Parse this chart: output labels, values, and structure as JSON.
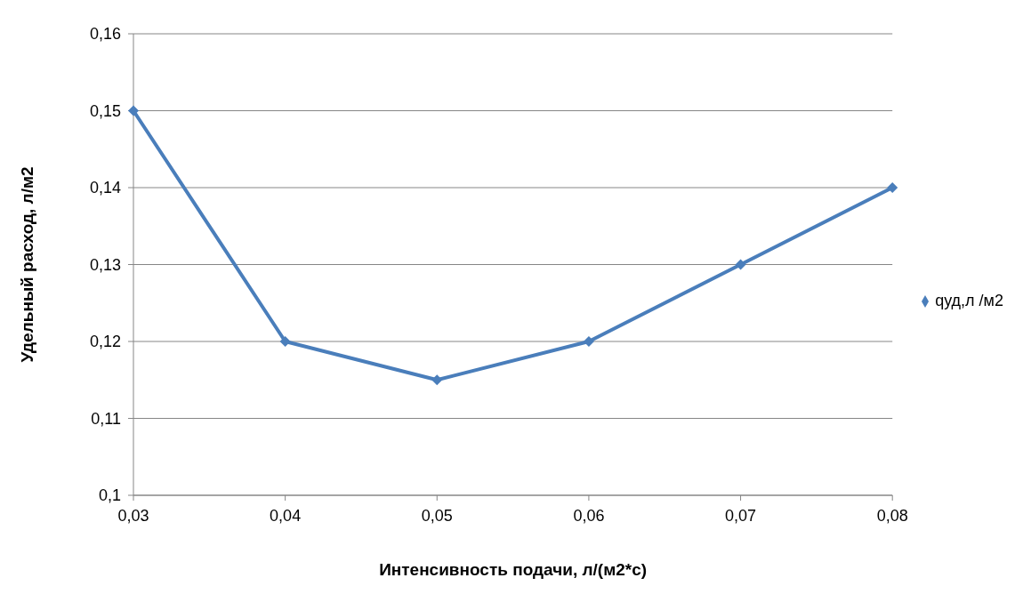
{
  "chart_data": {
    "type": "line",
    "xlabel": "Интенсивность подачи, л/(м2*с)",
    "ylabel": "Удельный расход, л/м2",
    "categories": [
      "0,03",
      "0,04",
      "0,05",
      "0,06",
      "0,07",
      "0,08"
    ],
    "series": [
      {
        "name": "qуд,л /м2",
        "color": "#4a7ebb",
        "values": [
          0.15,
          0.12,
          0.115,
          0.12,
          0.13,
          0.14
        ]
      }
    ],
    "ylim": [
      0.1,
      0.16
    ],
    "yticks": [
      {
        "value": 0.1,
        "label": "0,1"
      },
      {
        "value": 0.11,
        "label": "0,11"
      },
      {
        "value": 0.12,
        "label": "0,12"
      },
      {
        "value": 0.13,
        "label": "0,13"
      },
      {
        "value": 0.14,
        "label": "0,14"
      },
      {
        "value": 0.15,
        "label": "0,15"
      },
      {
        "value": 0.16,
        "label": "0,16"
      }
    ],
    "grid": "y",
    "legend": "right",
    "marker": "diamond",
    "line_style": "solid"
  }
}
